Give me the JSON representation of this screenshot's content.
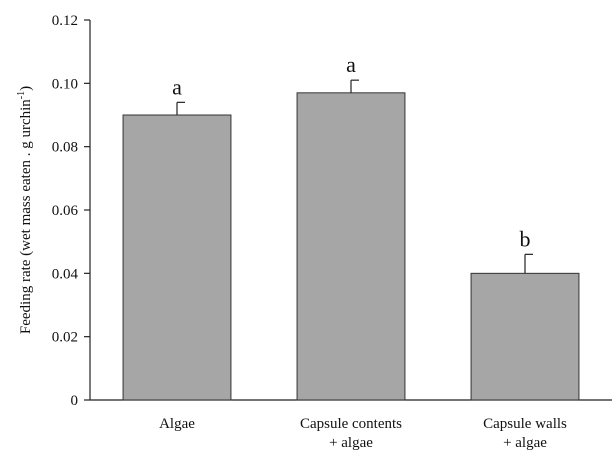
{
  "chart_data": {
    "type": "bar",
    "categories": [
      [
        "Algae"
      ],
      [
        "Capsule contents",
        "+ algae"
      ],
      [
        "Capsule walls",
        "+ algae"
      ]
    ],
    "values": [
      0.09,
      0.097,
      0.04
    ],
    "errors": [
      0.004,
      0.004,
      0.006
    ],
    "significance_labels": [
      "a",
      "a",
      "b"
    ],
    "ylabel": "Feeding rate (wet mass eaten . g urchin",
    "ylabel_superscript": "-1",
    "ylabel_close": ")",
    "xlabel": "",
    "title": "",
    "ylim": [
      0,
      0.12
    ],
    "yticks": [
      "0",
      "0.02",
      "0.04",
      "0.06",
      "0.08",
      "0.10",
      "0.12"
    ],
    "ytick_values": [
      0,
      0.02,
      0.04,
      0.06,
      0.08,
      0.1,
      0.12
    ],
    "grid": false,
    "bar_color": "#a6a6a6",
    "bar_edge_color": "#333333"
  }
}
